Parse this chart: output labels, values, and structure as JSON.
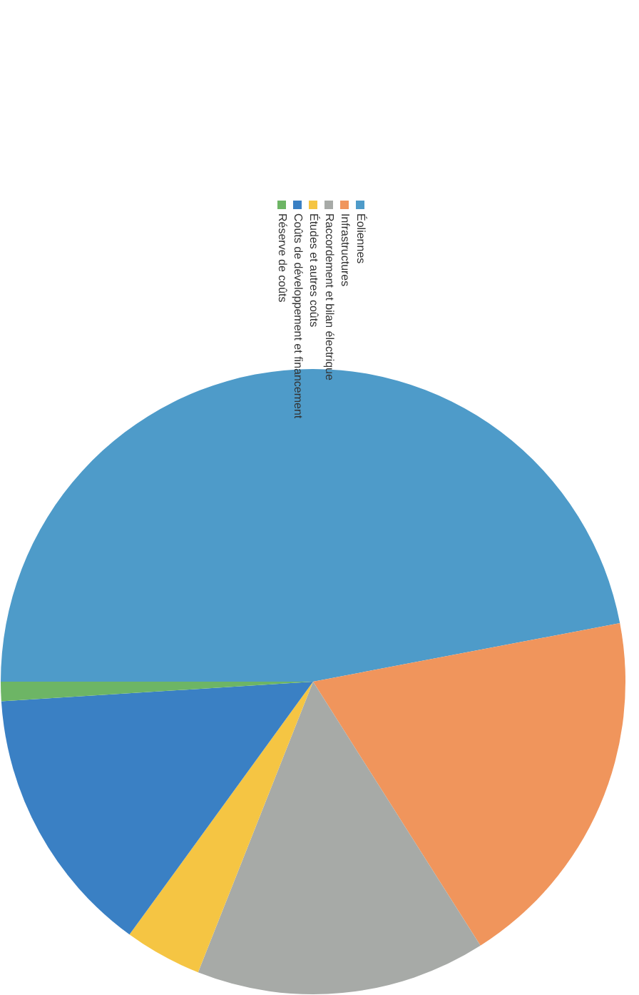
{
  "chart_data": {
    "type": "pie",
    "categories": [
      "Éoliennes",
      "Infrastructures",
      "Raccordement et bilan électrique",
      "Études et autres coûts",
      "Coûts de développement et financement",
      "Réserve de coûts"
    ],
    "values": [
      47,
      19,
      15,
      4,
      14,
      1
    ],
    "colors": [
      "#4e9bc9",
      "#f0955c",
      "#a7aaa7",
      "#f5c543",
      "#3a80c4",
      "#6db565"
    ],
    "legend": "top"
  }
}
